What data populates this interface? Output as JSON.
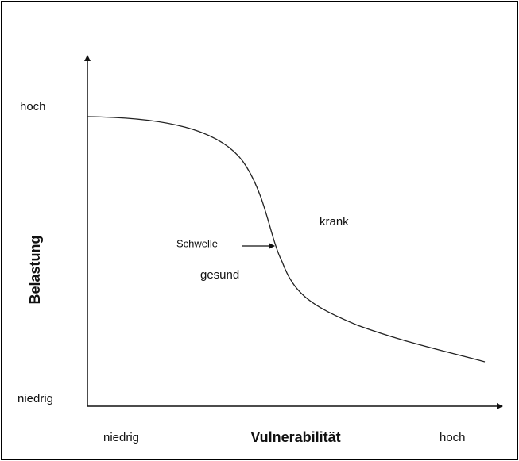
{
  "y_axis": {
    "label": "Belastung",
    "high": "hoch",
    "low": "niedrig"
  },
  "x_axis": {
    "label": "Vulnerabilität",
    "low": "niedrig",
    "high": "hoch"
  },
  "regions": {
    "above": "krank",
    "below": "gesund"
  },
  "threshold": "Schwelle"
}
